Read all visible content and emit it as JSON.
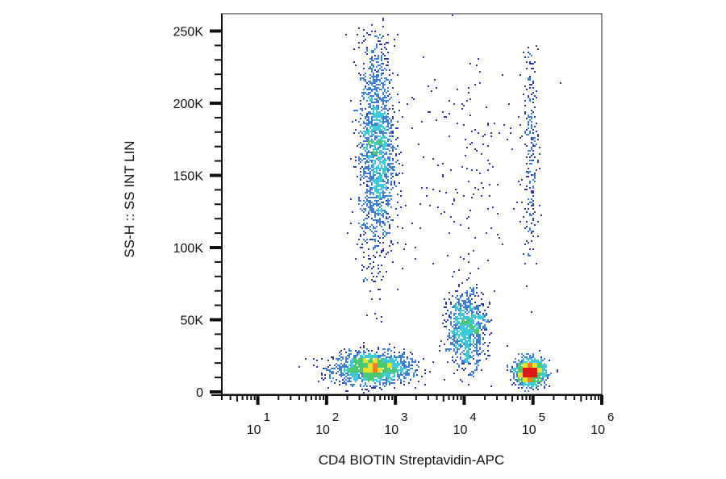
{
  "chart_data": {
    "type": "scatter",
    "subtype": "flow-cytometry density dot plot",
    "xlabel": "CD4 BIOTIN Streptavidin-APC",
    "ylabel": "SS-H :: SS INT LIN",
    "x_scale": "log",
    "xlim": [
      3,
      1000000
    ],
    "ylim": [
      0,
      262000
    ],
    "x_ticks": [
      {
        "base": "10",
        "exp": "1",
        "value": 10
      },
      {
        "base": "10",
        "exp": "2",
        "value": 100
      },
      {
        "base": "10",
        "exp": "3",
        "value": 1000
      },
      {
        "base": "10",
        "exp": "4",
        "value": 10000
      },
      {
        "base": "10",
        "exp": "5",
        "value": 100000
      },
      {
        "base": "10",
        "exp": "6",
        "value": 1000000
      }
    ],
    "y_ticks": [
      {
        "label": "0",
        "value": 0
      },
      {
        "label": "50K",
        "value": 50000
      },
      {
        "label": "100K",
        "value": 100000
      },
      {
        "label": "150K",
        "value": 150000
      },
      {
        "label": "200K",
        "value": 200000
      },
      {
        "label": "250K",
        "value": 250000
      }
    ],
    "colormap": [
      "#2b3a9a",
      "#3f7fd0",
      "#3fc8d8",
      "#4cc870",
      "#e8e030",
      "#f08020",
      "#e01818"
    ],
    "grid": false,
    "populations": [
      {
        "x_center": 450,
        "x_spread_decades": 0.28,
        "y_center": 17000,
        "y_spread": 5500,
        "count": 1500
      },
      {
        "x_center": 520,
        "x_spread_decades": 0.13,
        "y_center": 168000,
        "y_spread": 38000,
        "count": 1700
      },
      {
        "x_center": 10500,
        "x_spread_decades": 0.14,
        "y_center": 44000,
        "y_spread": 13000,
        "count": 900
      },
      {
        "x_center": 90000,
        "x_spread_decades": 0.11,
        "y_center": 14000,
        "y_spread": 4500,
        "count": 1100
      },
      {
        "x_center": 90000,
        "x_spread_decades": 0.06,
        "y_center": 170000,
        "y_spread": 40000,
        "count": 220
      },
      {
        "x_center": 8000,
        "x_spread_decades": 0.45,
        "y_center": 160000,
        "y_spread": 45000,
        "count": 160
      }
    ]
  }
}
